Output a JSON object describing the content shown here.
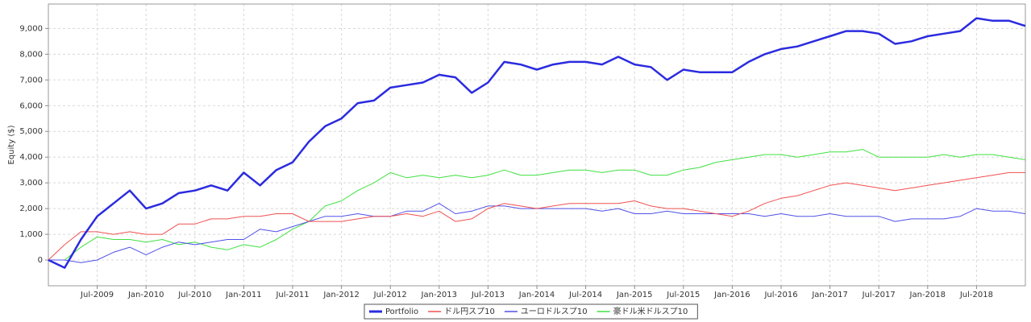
{
  "chart_data": {
    "type": "line",
    "y_label": "Equity ($)",
    "categories": [
      null,
      null,
      null,
      "Jul-2009",
      null,
      null,
      "Jan-2010",
      null,
      null,
      "Jul-2010",
      null,
      null,
      "Jan-2011",
      null,
      null,
      "Jul-2011",
      null,
      null,
      "Jan-2012",
      null,
      null,
      "Jul-2012",
      null,
      null,
      "Jan-2013",
      null,
      null,
      "Jul-2013",
      null,
      null,
      "Jan-2014",
      null,
      null,
      "Jul-2014",
      null,
      null,
      "Jan-2015",
      null,
      null,
      "Jul-2015",
      null,
      null,
      "Jan-2016",
      null,
      null,
      "Jul-2016",
      null,
      null,
      "Jan-2017",
      null,
      null,
      "Jul-2017",
      null,
      null,
      "Jan-2018",
      null,
      null,
      "Jul-2018",
      null,
      null,
      null
    ],
    "series": [
      {
        "name": "Portfolio",
        "color": "#2b2bdf",
        "width": 2.5,
        "values": [
          0,
          -300,
          800,
          1700,
          2200,
          2700,
          2000,
          2200,
          2600,
          2700,
          2900,
          2700,
          3400,
          2900,
          3500,
          3800,
          4600,
          5200,
          5500,
          6100,
          6200,
          6700,
          6800,
          6900,
          7200,
          7100,
          6500,
          6900,
          7700,
          7600,
          7400,
          7600,
          7700,
          7700,
          7600,
          7900,
          7600,
          7500,
          7000,
          7400,
          7300,
          7300,
          7300,
          7700,
          8000,
          8200,
          8300,
          8500,
          8700,
          8900,
          8900,
          8800,
          8400,
          8500,
          8700,
          8800,
          8900,
          9400,
          9300,
          9300,
          9100
        ]
      },
      {
        "name": "ドル円スプ10",
        "color": "#f05050",
        "width": 1,
        "values": [
          0,
          600,
          1100,
          1100,
          1000,
          1100,
          1000,
          1000,
          1400,
          1400,
          1600,
          1600,
          1700,
          1700,
          1800,
          1800,
          1500,
          1500,
          1500,
          1600,
          1700,
          1700,
          1800,
          1700,
          1900,
          1500,
          1600,
          2000,
          2200,
          2100,
          2000,
          2100,
          2200,
          2200,
          2200,
          2200,
          2300,
          2100,
          2000,
          2000,
          1900,
          1800,
          1700,
          1900,
          2200,
          2400,
          2500,
          2700,
          2900,
          3000,
          2900,
          2800,
          2700,
          2800,
          2900,
          3000,
          3100,
          3200,
          3300,
          3400,
          3400
        ]
      },
      {
        "name": "ユーロドルスプ10",
        "color": "#5050e8",
        "width": 1,
        "values": [
          0,
          0,
          -100,
          0,
          300,
          500,
          200,
          500,
          700,
          600,
          700,
          800,
          800,
          1200,
          1100,
          1300,
          1500,
          1700,
          1700,
          1800,
          1700,
          1700,
          1900,
          1900,
          2200,
          1800,
          1900,
          2100,
          2100,
          2000,
          2000,
          2000,
          2000,
          2000,
          1900,
          2000,
          1800,
          1800,
          1900,
          1800,
          1800,
          1800,
          1800,
          1800,
          1700,
          1800,
          1700,
          1700,
          1800,
          1700,
          1700,
          1700,
          1500,
          1600,
          1600,
          1600,
          1700,
          2000,
          1900,
          1900,
          1800
        ]
      },
      {
        "name": "豪ドル米ドルスプ10",
        "color": "#40e040",
        "width": 1,
        "values": [
          0,
          0,
          500,
          900,
          800,
          800,
          700,
          800,
          600,
          700,
          500,
          400,
          600,
          500,
          800,
          1200,
          1500,
          2100,
          2300,
          2700,
          3000,
          3400,
          3200,
          3300,
          3200,
          3300,
          3200,
          3300,
          3500,
          3300,
          3300,
          3400,
          3500,
          3500,
          3400,
          3500,
          3500,
          3300,
          3300,
          3500,
          3600,
          3800,
          3900,
          4000,
          4100,
          4100,
          4000,
          4100,
          4200,
          4200,
          4300,
          4000,
          4000,
          4000,
          4000,
          4100,
          4000,
          4100,
          4100,
          4000,
          3900
        ]
      }
    ],
    "ylim": [
      -1000,
      9950
    ],
    "yticks": [
      0,
      {
        "value": 1000,
        "label": "1,000"
      },
      {
        "value": 2000,
        "label": "2,000"
      },
      {
        "value": 3000,
        "label": "3,000"
      },
      {
        "value": 4000,
        "label": "4,000"
      },
      {
        "value": 5000,
        "label": "5,000"
      },
      {
        "value": 6000,
        "label": "6,000"
      },
      {
        "value": 7000,
        "label": "7,000"
      },
      {
        "value": 8000,
        "label": "8,000"
      },
      {
        "value": 9000,
        "label": "9,000"
      }
    ],
    "grid": true,
    "legend": "bottom"
  }
}
